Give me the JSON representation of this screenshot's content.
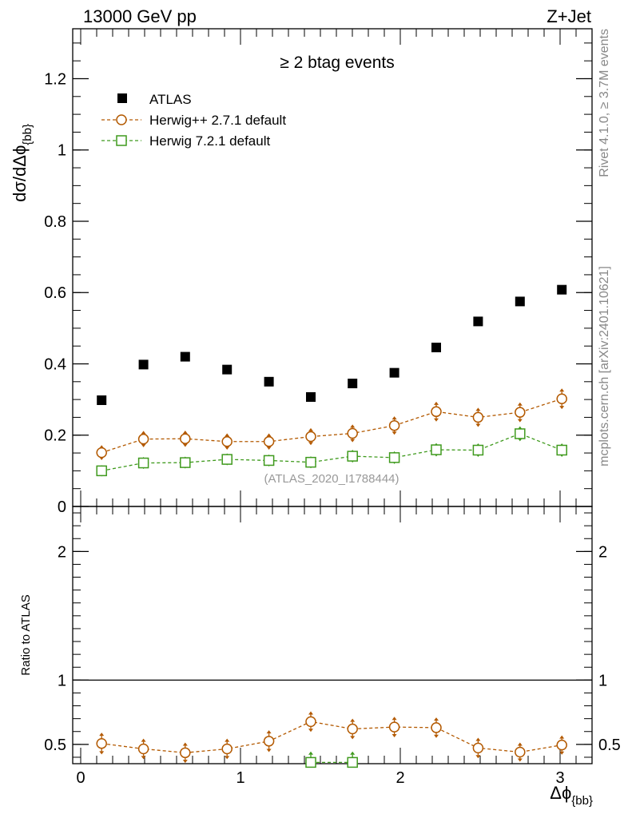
{
  "header": {
    "left": "13000 GeV pp",
    "right": "Z+Jet"
  },
  "side_labels": {
    "rivet": "Rivet 4.1.0, ≥ 3.7M events",
    "mcplots": "mcplots.cern.ch [arXiv:2401.10621]"
  },
  "watermark": "(ATLAS_2020_I1788444)",
  "colors": {
    "atlas": "#000000",
    "herwigpp": "#b35900",
    "herwig7": "#3f9a1d",
    "watermark": "#999999",
    "side": "#888888"
  },
  "chart_data": [
    {
      "type": "scatter",
      "panel": "main",
      "title": "≥ 2 btag events",
      "xlabel": "Δϕ",
      "xlabel_sub": "{bb}",
      "ylabel": "dσ/dΔϕ",
      "ylabel_sub": "{bb}",
      "xlim": [
        -0.05,
        3.2
      ],
      "ylim": [
        0,
        1.34
      ],
      "y_ticks": [
        0,
        0.2,
        0.4,
        0.6,
        0.8,
        1,
        1.2
      ],
      "y_tick_labels": [
        "0",
        "0.2",
        "0.4",
        "0.6",
        "0.8",
        "1",
        "1.2"
      ],
      "x": [
        0.131,
        0.393,
        0.654,
        0.916,
        1.178,
        1.44,
        1.701,
        1.963,
        2.225,
        2.487,
        2.749,
        3.011
      ],
      "series": [
        {
          "name": "ATLAS",
          "marker": "filled-square",
          "color": "#000000",
          "values": [
            0.298,
            0.398,
            0.42,
            0.384,
            0.35,
            0.307,
            0.345,
            0.375,
            0.446,
            0.519,
            0.575,
            0.608
          ]
        },
        {
          "name": "Herwig++ 2.7.1 default",
          "marker": "open-circle",
          "color": "#b35900",
          "dashed": true,
          "values": [
            0.151,
            0.189,
            0.19,
            0.182,
            0.182,
            0.196,
            0.205,
            0.227,
            0.266,
            0.25,
            0.264,
            0.302
          ],
          "errors": [
            0.012,
            0.014,
            0.014,
            0.014,
            0.014,
            0.015,
            0.016,
            0.017,
            0.019,
            0.018,
            0.019,
            0.02
          ]
        },
        {
          "name": "Herwig 7.2.1 default",
          "marker": "open-square",
          "color": "#3f9a1d",
          "dashed": true,
          "values": [
            0.1,
            0.122,
            0.123,
            0.132,
            0.129,
            0.124,
            0.141,
            0.137,
            0.159,
            0.158,
            0.204,
            0.158
          ],
          "errors": [
            0.007,
            0.008,
            0.008,
            0.008,
            0.008,
            0.008,
            0.009,
            0.009,
            0.01,
            0.01,
            0.012,
            0.01
          ]
        }
      ]
    },
    {
      "type": "scatter",
      "panel": "ratio",
      "ylabel": "Ratio to ATLAS",
      "xlim": [
        -0.05,
        3.2
      ],
      "ylim": [
        0.35,
        2.35
      ],
      "y_ticks": [
        0.5,
        1,
        2
      ],
      "y_tick_labels": [
        "0.5",
        "1",
        "2"
      ],
      "x_ticks": [
        0,
        1,
        2,
        3
      ],
      "x_tick_labels": [
        "0",
        "1",
        "2",
        "3"
      ],
      "reference_line": 1,
      "x": [
        0.131,
        0.393,
        0.654,
        0.916,
        1.178,
        1.44,
        1.701,
        1.963,
        2.225,
        2.487,
        2.749,
        3.011
      ],
      "series": [
        {
          "name": "Herwig++ 2.7.1 default",
          "color": "#b35900",
          "values": [
            0.507,
            0.465,
            0.435,
            0.465,
            0.525,
            0.677,
            0.62,
            0.635,
            0.63,
            0.472,
            0.44,
            0.495
          ],
          "errors": [
            0.06,
            0.055,
            0.055,
            0.055,
            0.06,
            0.055,
            0.055,
            0.055,
            0.055,
            0.055,
            0.05,
            0.05
          ]
        },
        {
          "name": "Herwig 7.2.1 default",
          "color": "#3f9a1d",
          "x_points": [
            1.44,
            1.701
          ],
          "values": [
            0.36,
            0.36
          ],
          "errors": [
            0.06,
            0.06
          ]
        }
      ]
    }
  ]
}
